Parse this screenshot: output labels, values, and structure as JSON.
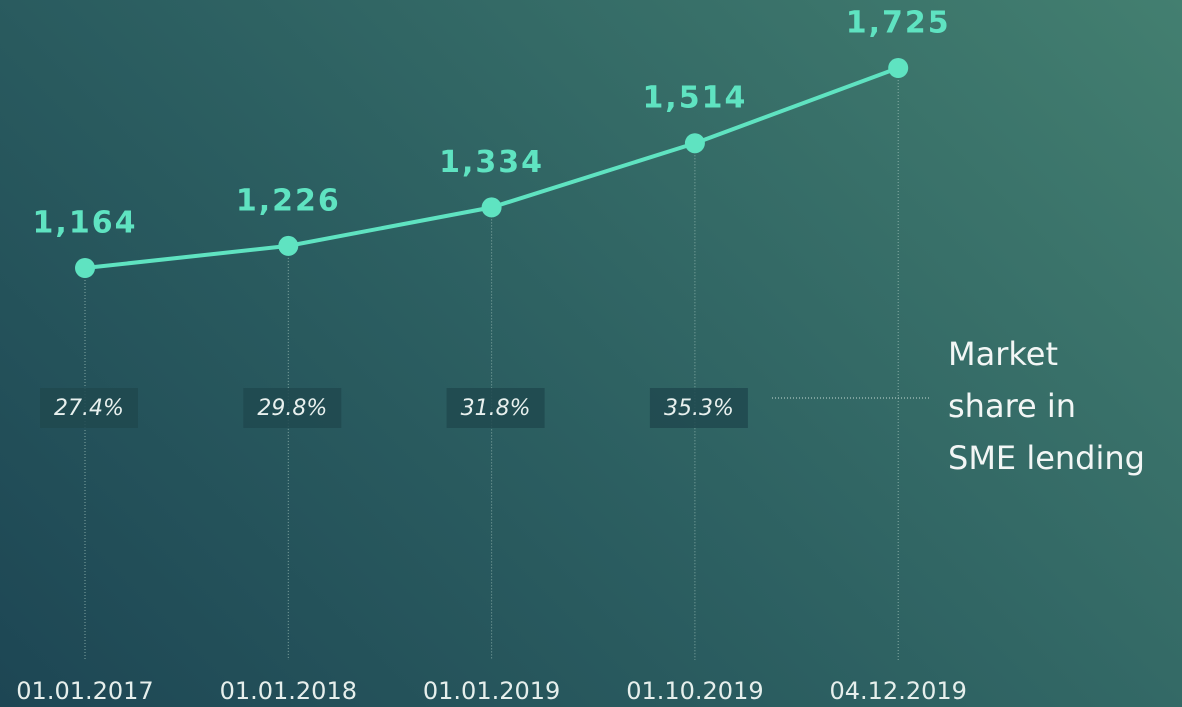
{
  "chart_data": {
    "type": "line",
    "categories": [
      "01.01.2017",
      "01.01.2018",
      "01.01.2019",
      "01.10.2019",
      "04.12.2019"
    ],
    "values": [
      1164,
      1226,
      1334,
      1514,
      1725
    ],
    "value_labels": [
      "1,164",
      "1,226",
      "1,334",
      "1,514",
      "1,725"
    ],
    "color": "#5fe3c1",
    "market_share": {
      "values": [
        27.4,
        29.8,
        31.8,
        35.3
      ],
      "value_labels": [
        "27.4%",
        "29.8%",
        "31.8%",
        "35.3%"
      ]
    },
    "annotation": [
      "Market",
      "share in",
      "SME lending"
    ]
  }
}
